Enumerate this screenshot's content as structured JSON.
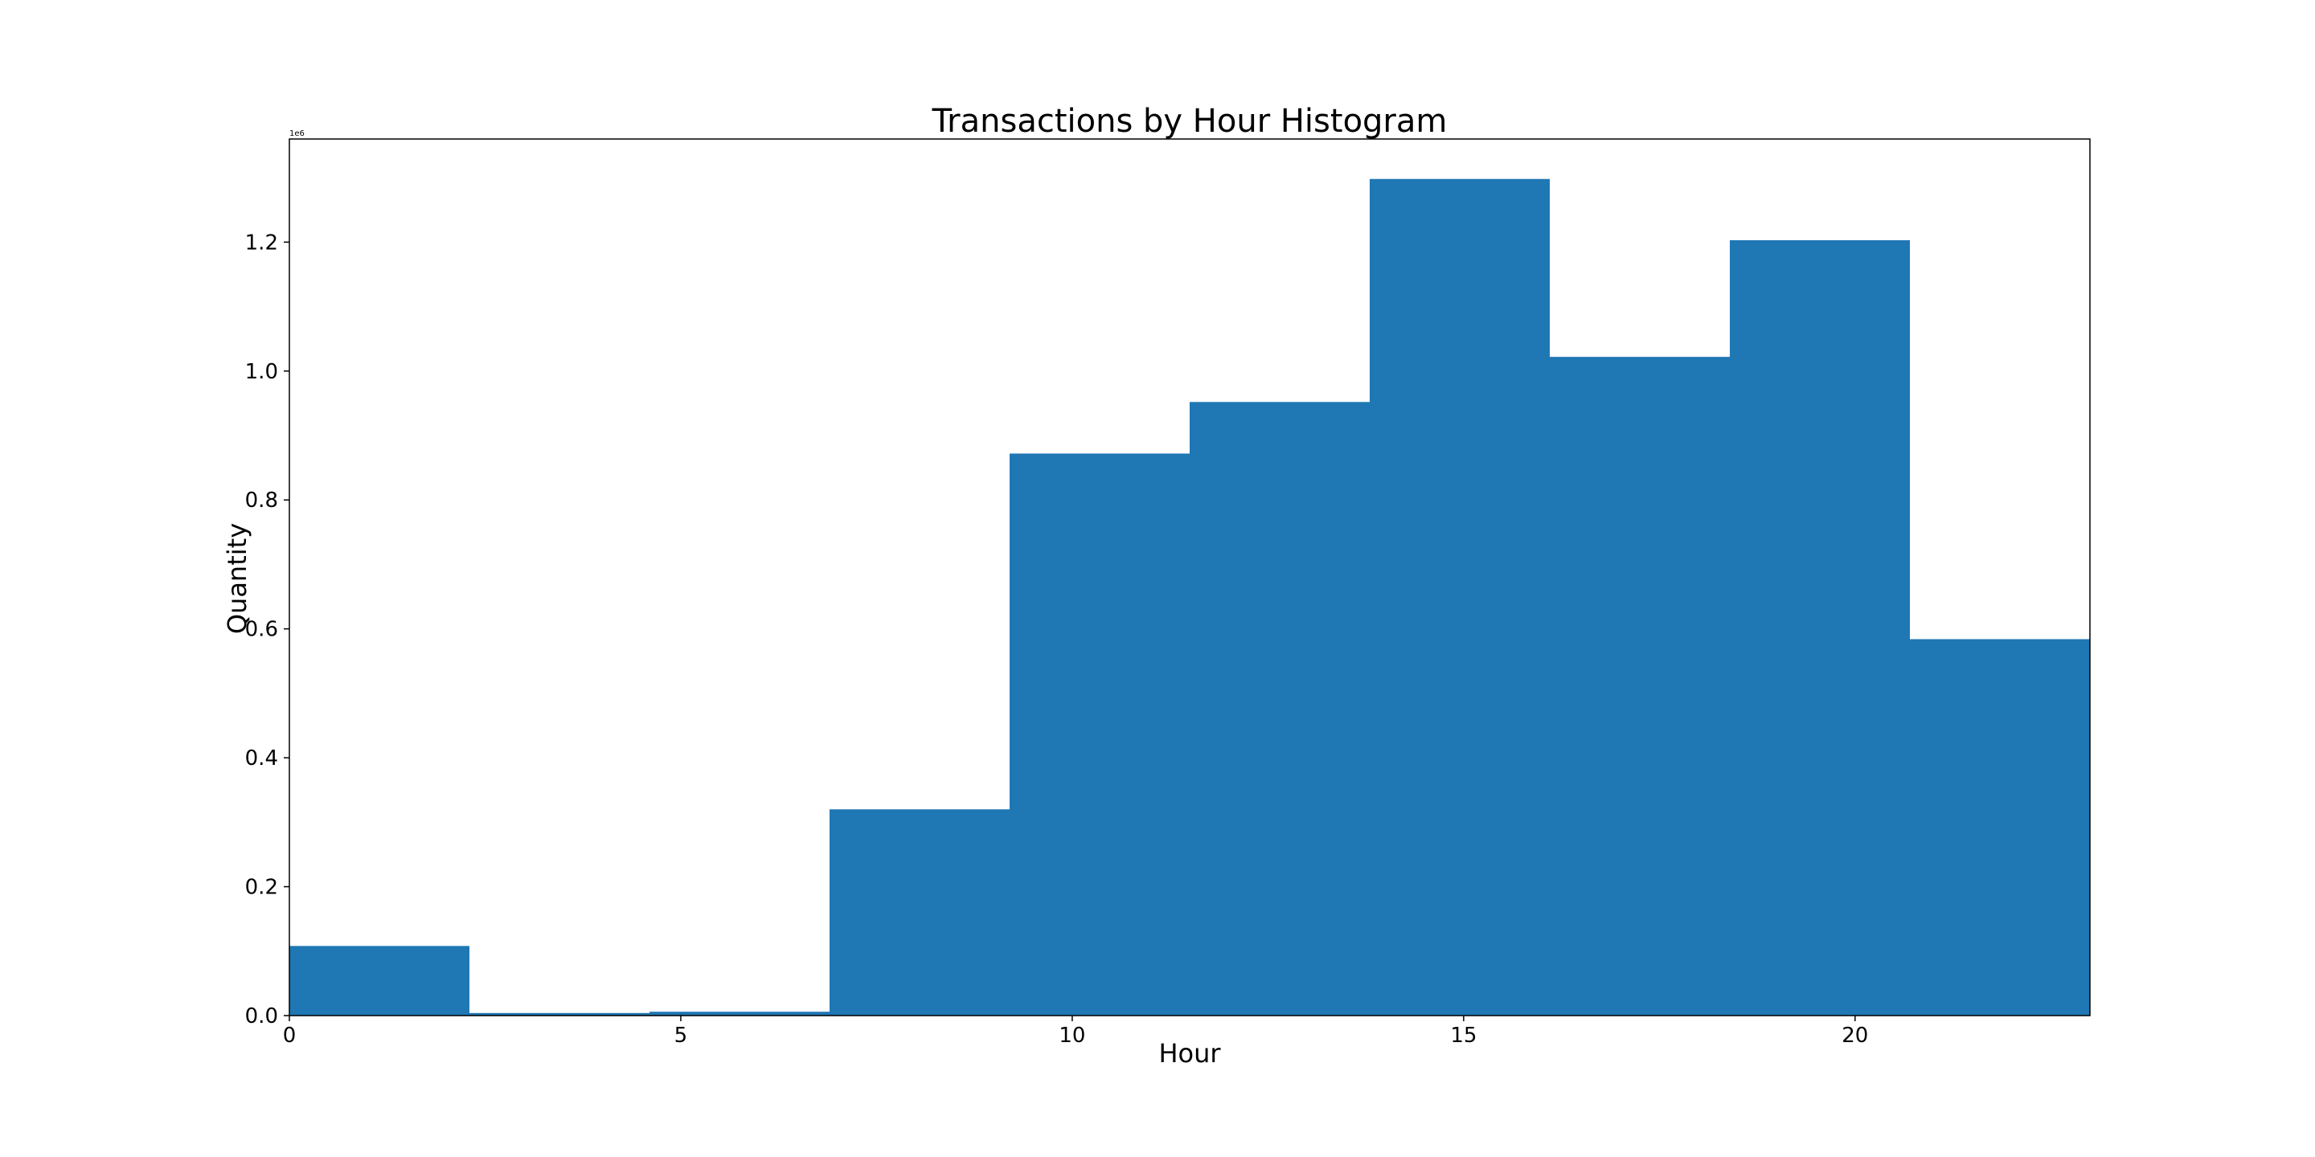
{
  "chart_data": {
    "type": "bar",
    "title": "Transactions by Hour Histogram",
    "xlabel": "Hour",
    "ylabel": "Quantity",
    "y_offset_label": "1e6",
    "xlim": [
      0,
      23
    ],
    "ylim": [
      0,
      1360000
    ],
    "x_ticks": [
      0,
      5,
      10,
      15,
      20
    ],
    "x_tick_labels": [
      "0",
      "5",
      "10",
      "15",
      "20"
    ],
    "y_ticks": [
      0,
      200000,
      400000,
      600000,
      800000,
      1000000,
      1200000
    ],
    "y_tick_labels": [
      "0.0",
      "0.2",
      "0.4",
      "0.6",
      "0.8",
      "1.0",
      "1.2"
    ],
    "bin_edges": [
      0,
      2.3,
      4.6,
      6.9,
      9.2,
      11.5,
      13.8,
      16.1,
      18.4,
      20.7,
      23
    ],
    "values": [
      108000,
      4000,
      6000,
      320000,
      872000,
      952000,
      1298000,
      1022000,
      1203000,
      584000
    ],
    "bar_color": "#1f77b4",
    "grid": false,
    "legend": "none"
  }
}
